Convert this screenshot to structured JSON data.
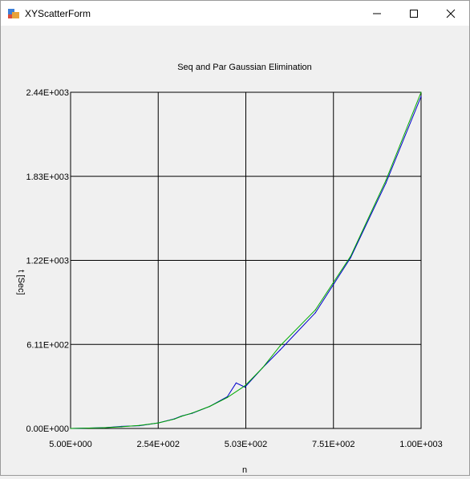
{
  "window": {
    "title": "XYScatterForm",
    "icons": {
      "app": "app-form-icon",
      "minimize": "minimize-icon",
      "maximize": "maximize-icon",
      "close": "close-icon"
    }
  },
  "chart_data": {
    "type": "line",
    "title": "Seq and Par Gaussian Elimination",
    "xlabel": "n",
    "ylabel": "t [Sec]",
    "xlim": [
      5,
      1000
    ],
    "ylim": [
      0,
      2440
    ],
    "xticks": [
      "5.00E+000",
      "2.54E+002",
      "5.03E+002",
      "7.51E+002",
      "1.00E+003"
    ],
    "yticks": [
      "0.00E+000",
      "6.11E+002",
      "1.22E+003",
      "1.83E+003",
      "2.44E+003"
    ],
    "grid": true,
    "series": [
      {
        "color": "#0000cc",
        "x": [
          5,
          100,
          150,
          200,
          254,
          300,
          320,
          350,
          400,
          450,
          475,
          500,
          550,
          600,
          700,
          800,
          900,
          1000
        ],
        "y": [
          0,
          5,
          15,
          20,
          40,
          70,
          90,
          110,
          160,
          230,
          330,
          300,
          440,
          570,
          840,
          1240,
          1780,
          2410
        ]
      },
      {
        "color": "#00aa00",
        "x": [
          5,
          100,
          150,
          200,
          254,
          300,
          320,
          350,
          400,
          450,
          500,
          550,
          600,
          700,
          800,
          900,
          1000
        ],
        "y": [
          0,
          5,
          12,
          22,
          40,
          68,
          88,
          112,
          160,
          225,
          310,
          440,
          600,
          860,
          1250,
          1800,
          2440
        ]
      }
    ]
  }
}
